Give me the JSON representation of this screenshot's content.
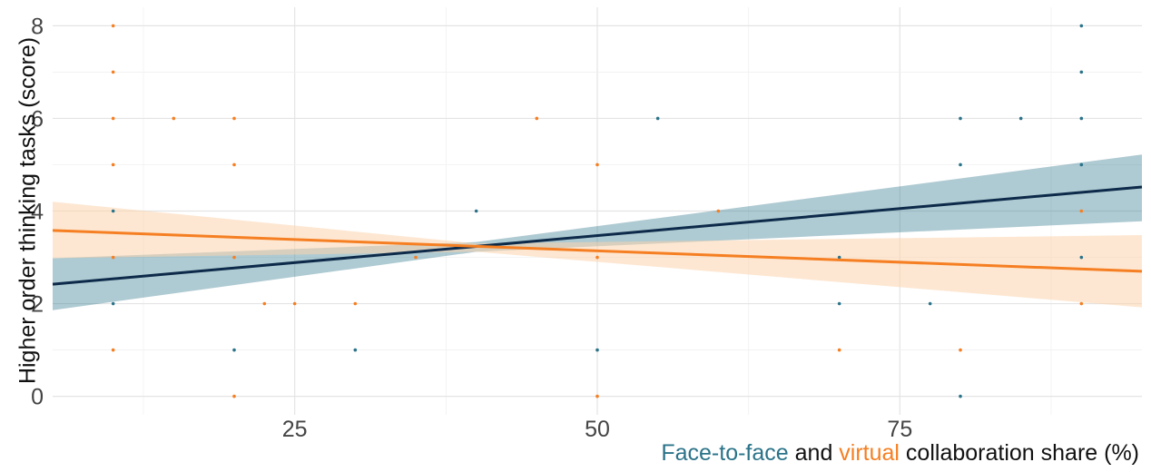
{
  "chart_data": {
    "type": "scatter",
    "title": "",
    "ylabel": "Higher order thinking tasks (score)",
    "xlabel_parts": [
      {
        "text": "Face-to-face",
        "color": "#2b7389"
      },
      {
        "text": " and ",
        "color": "#111111"
      },
      {
        "text": "virtual",
        "color": "#f57f22"
      },
      {
        "text": " collaboration share (%)",
        "color": "#111111"
      }
    ],
    "xlim": [
      5,
      95
    ],
    "ylim": [
      -0.4,
      8.4
    ],
    "x_ticks": [
      25,
      50,
      75
    ],
    "x_tick_labels": [
      "25",
      "50",
      "75"
    ],
    "y_ticks": [
      0,
      2,
      4,
      6,
      8
    ],
    "y_tick_labels": [
      "0",
      "2",
      "4",
      "6",
      "8"
    ],
    "grid": true,
    "legend": "none",
    "series": [
      {
        "name": "Face-to-face",
        "color": "#2b7389",
        "line_color": "#0d2a4a",
        "band_color": "#2b7389",
        "fit": {
          "x": [
            5,
            95
          ],
          "y": [
            2.42,
            4.52
          ]
        },
        "ci": {
          "x": [
            5,
            40,
            95
          ],
          "upper": [
            2.98,
            3.33,
            5.22
          ],
          "lower": [
            1.86,
            3.12,
            3.78
          ]
        },
        "points": [
          {
            "x": 10,
            "y": 2
          },
          {
            "x": 10,
            "y": 4
          },
          {
            "x": 20,
            "y": 1
          },
          {
            "x": 30,
            "y": 1
          },
          {
            "x": 40,
            "y": 4
          },
          {
            "x": 50,
            "y": 1
          },
          {
            "x": 55,
            "y": 6
          },
          {
            "x": 70,
            "y": 2
          },
          {
            "x": 70,
            "y": 3
          },
          {
            "x": 77.5,
            "y": 2
          },
          {
            "x": 80,
            "y": 0
          },
          {
            "x": 80,
            "y": 5
          },
          {
            "x": 80,
            "y": 6
          },
          {
            "x": 85,
            "y": 6
          },
          {
            "x": 90,
            "y": 3
          },
          {
            "x": 90,
            "y": 5
          },
          {
            "x": 90,
            "y": 6
          },
          {
            "x": 90,
            "y": 7
          },
          {
            "x": 90,
            "y": 8
          }
        ]
      },
      {
        "name": "virtual",
        "color": "#f57f22",
        "line_color": "#f57f22",
        "band_color": "#fcd3ad",
        "fit": {
          "x": [
            5,
            95
          ],
          "y": [
            3.58,
            2.7
          ]
        },
        "ci": {
          "x": [
            5,
            40,
            95
          ],
          "upper": [
            4.2,
            3.3,
            3.48
          ],
          "lower": [
            2.98,
            3.12,
            1.92
          ]
        },
        "points": [
          {
            "x": 10,
            "y": 1
          },
          {
            "x": 10,
            "y": 3
          },
          {
            "x": 10,
            "y": 5
          },
          {
            "x": 10,
            "y": 6
          },
          {
            "x": 10,
            "y": 7
          },
          {
            "x": 10,
            "y": 8
          },
          {
            "x": 15,
            "y": 6
          },
          {
            "x": 20,
            "y": 0
          },
          {
            "x": 20,
            "y": 3
          },
          {
            "x": 20,
            "y": 5
          },
          {
            "x": 20,
            "y": 6
          },
          {
            "x": 22.5,
            "y": 2
          },
          {
            "x": 25,
            "y": 2
          },
          {
            "x": 30,
            "y": 2
          },
          {
            "x": 35,
            "y": 3
          },
          {
            "x": 45,
            "y": 6
          },
          {
            "x": 50,
            "y": 0
          },
          {
            "x": 50,
            "y": 3
          },
          {
            "x": 50,
            "y": 5
          },
          {
            "x": 60,
            "y": 4
          },
          {
            "x": 70,
            "y": 1
          },
          {
            "x": 80,
            "y": 1
          },
          {
            "x": 90,
            "y": 2
          },
          {
            "x": 90,
            "y": 4
          }
        ]
      }
    ]
  }
}
